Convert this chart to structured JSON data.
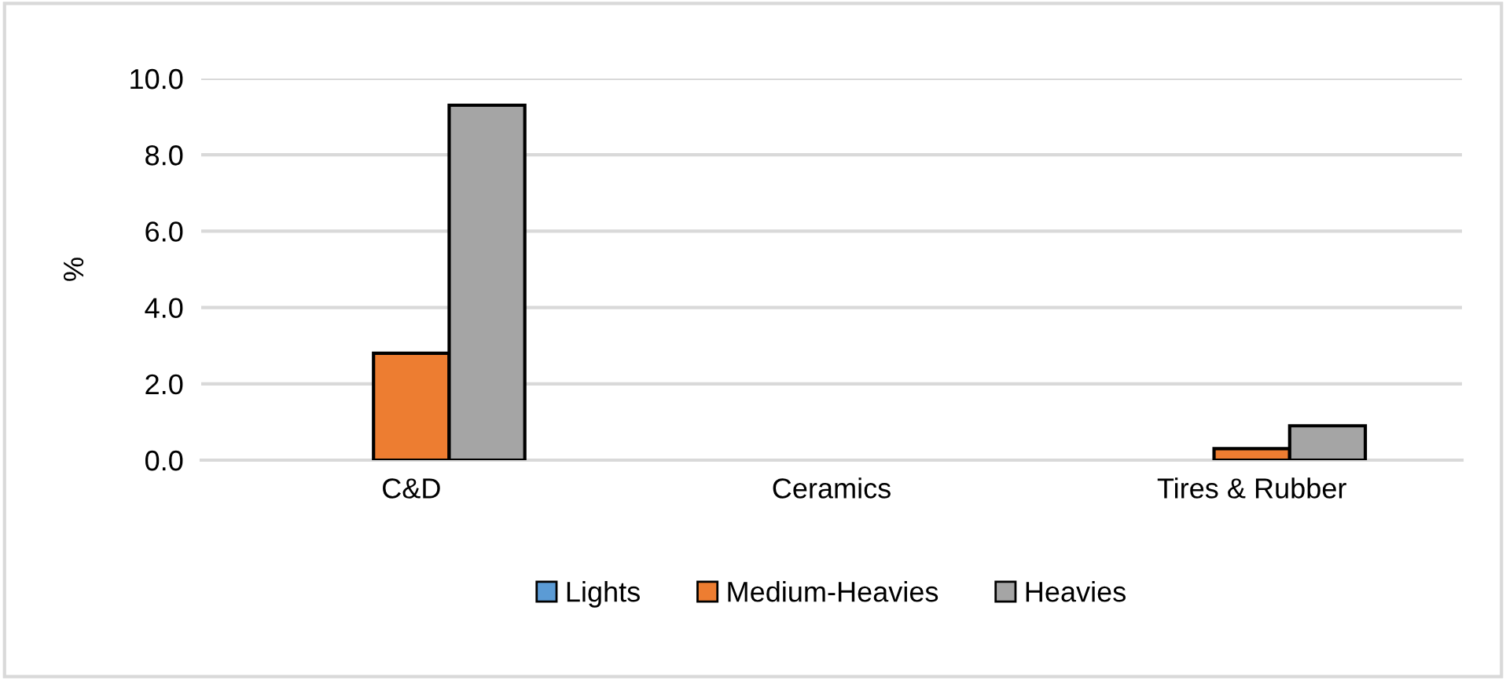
{
  "chart_data": {
    "type": "bar",
    "ylabel": "%",
    "categories": [
      "C&D",
      "Ceramics",
      "Tires & Rubber"
    ],
    "series": [
      {
        "name": "Lights",
        "color": "#5b9bd5",
        "values": [
          0,
          0,
          0
        ]
      },
      {
        "name": "Medium-Heavies",
        "color": "#ed7d31",
        "values": [
          2.8,
          0,
          0.3
        ]
      },
      {
        "name": "Heavies",
        "color": "#a5a5a5",
        "values": [
          9.3,
          0,
          0.9
        ]
      }
    ],
    "ylim": [
      0,
      10
    ],
    "yticks": [
      {
        "value": 0,
        "label": "0.0"
      },
      {
        "value": 2,
        "label": "2.0"
      },
      {
        "value": 4,
        "label": "4.0"
      },
      {
        "value": 6,
        "label": "6.0"
      },
      {
        "value": 8,
        "label": "8.0"
      },
      {
        "value": 10,
        "label": "10.0"
      }
    ],
    "grid": "y",
    "legend": "bottom"
  }
}
